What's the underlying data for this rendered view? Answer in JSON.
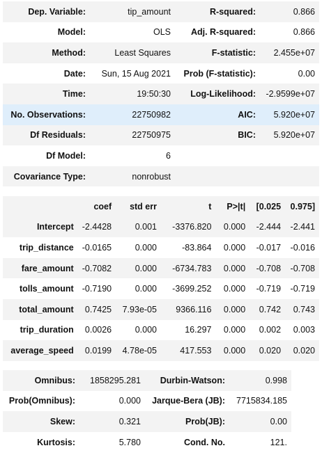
{
  "summary": [
    [
      "Dep. Variable:",
      "tip_amount",
      "R-squared:",
      "0.866"
    ],
    [
      "Model:",
      "OLS",
      "Adj. R-squared:",
      "0.866"
    ],
    [
      "Method:",
      "Least Squares",
      "F-statistic:",
      "2.455e+07"
    ],
    [
      "Date:",
      "Sun, 15 Aug 2021",
      "Prob (F-statistic):",
      "0.00"
    ],
    [
      "Time:",
      "19:50:30",
      "Log-Likelihood:",
      "-2.9599e+07"
    ],
    [
      "No. Observations:",
      "22750982",
      "AIC:",
      "5.920e+07"
    ],
    [
      "Df Residuals:",
      "22750975",
      "BIC:",
      "5.920e+07"
    ],
    [
      "Df Model:",
      "6",
      "",
      ""
    ],
    [
      "Covariance Type:",
      "nonrobust",
      "",
      ""
    ]
  ],
  "coef_table": {
    "headers": [
      "",
      "coef",
      "std err",
      "t",
      "P>|t|",
      "[0.025",
      "0.975]"
    ],
    "rows": [
      [
        "Intercept",
        "-2.4428",
        "0.001",
        "-3376.820",
        "0.000",
        "-2.444",
        "-2.441"
      ],
      [
        "trip_distance",
        "-0.0165",
        "0.000",
        "-83.864",
        "0.000",
        "-0.017",
        "-0.016"
      ],
      [
        "fare_amount",
        "-0.7082",
        "0.000",
        "-6734.783",
        "0.000",
        "-0.708",
        "-0.708"
      ],
      [
        "tolls_amount",
        "-0.7190",
        "0.000",
        "-3699.252",
        "0.000",
        "-0.719",
        "-0.719"
      ],
      [
        "total_amount",
        "0.7425",
        "7.93e-05",
        "9366.116",
        "0.000",
        "0.742",
        "0.743"
      ],
      [
        "trip_duration",
        "0.0026",
        "0.000",
        "16.297",
        "0.000",
        "0.002",
        "0.003"
      ],
      [
        "average_speed",
        "0.0199",
        "4.78e-05",
        "417.553",
        "0.000",
        "0.020",
        "0.020"
      ]
    ]
  },
  "diagnostics": [
    [
      "Omnibus:",
      "1858295.281",
      "Durbin-Watson:",
      "0.998"
    ],
    [
      "Prob(Omnibus):",
      "0.000",
      "Jarque-Bera (JB):",
      "7715834.185"
    ],
    [
      "Skew:",
      "0.321",
      "Prob(JB):",
      "0.00"
    ],
    [
      "Kurtosis:",
      "5.780",
      "Cond. No.",
      "121."
    ]
  ],
  "hovered_row": 5
}
